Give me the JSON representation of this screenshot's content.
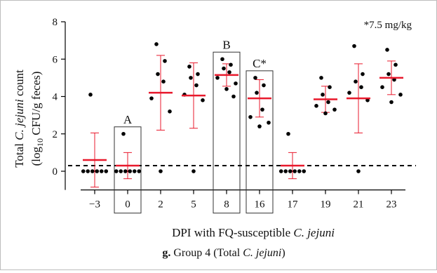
{
  "note": "*7.5 mg/kg",
  "caption": {
    "prefix": "g.",
    "text_before": " Group 4 (Total ",
    "species": "C. jejuni",
    "text_after": ")"
  },
  "y_title": {
    "line1_before": "Total ",
    "line1_species": "C. jejuni",
    "line1_after": " count",
    "line2_before": "(log",
    "line2_sub": "10",
    "line2_after": " CFU/g feces)"
  },
  "x_title": {
    "before": "DPI with FQ-susceptible ",
    "species": "C. jejuni"
  },
  "chart_data": {
    "type": "scatter",
    "categories": [
      "−3",
      "0",
      "2",
      "5",
      "8",
      "16",
      "17",
      "19",
      "21",
      "23"
    ],
    "ylim": [
      -1,
      8
    ],
    "yticks": [
      0,
      2,
      4,
      6,
      8
    ],
    "ytick_labels": [
      "0",
      "2",
      "4",
      "6",
      "8"
    ],
    "detection_limit": 0.3,
    "groups": [
      {
        "points": [
          4.1,
          0,
          0,
          0,
          0,
          0,
          0
        ],
        "mean": 0.6,
        "sd": 1.45
      },
      {
        "points": [
          2.0,
          0,
          0,
          0,
          0,
          0,
          0
        ],
        "mean": 0.3,
        "sd": 0.7
      },
      {
        "points": [
          6.8,
          5.9,
          5.2,
          4.8,
          3.9,
          3.2,
          0
        ],
        "mean": 4.2,
        "sd": 2.0
      },
      {
        "points": [
          5.6,
          5.2,
          5.0,
          4.6,
          4.1,
          3.8,
          0
        ],
        "mean": 4.05,
        "sd": 1.75
      },
      {
        "points": [
          6.0,
          5.7,
          5.5,
          5.3,
          5.0,
          4.7,
          4.4,
          4.0
        ],
        "mean": 5.15,
        "sd": 0.6
      },
      {
        "points": [
          5.0,
          4.6,
          4.2,
          3.3,
          2.9,
          2.6,
          2.4
        ],
        "mean": 3.9,
        "sd": 1.0
      },
      {
        "points": [
          2.0,
          0,
          0,
          0,
          0,
          0,
          0
        ],
        "mean": 0.3,
        "sd": 0.7
      },
      {
        "points": [
          5.0,
          4.5,
          4.1,
          3.7,
          3.5,
          3.3,
          3.1
        ],
        "mean": 3.85,
        "sd": 0.7
      },
      {
        "points": [
          6.7,
          5.2,
          4.8,
          4.5,
          4.2,
          3.8,
          0
        ],
        "mean": 3.9,
        "sd": 1.85
      },
      {
        "points": [
          6.5,
          5.7,
          5.2,
          4.9,
          4.5,
          4.1,
          3.7
        ],
        "mean": 5.0,
        "sd": 0.9
      }
    ],
    "boxes": [
      {
        "category_index": 1,
        "label": "A"
      },
      {
        "category_index": 4,
        "label": "B"
      },
      {
        "category_index": 5,
        "label": "C*"
      }
    ],
    "colors": {
      "points": "#000000",
      "mean_sd": "#e8192c",
      "axis": "#000000"
    }
  }
}
